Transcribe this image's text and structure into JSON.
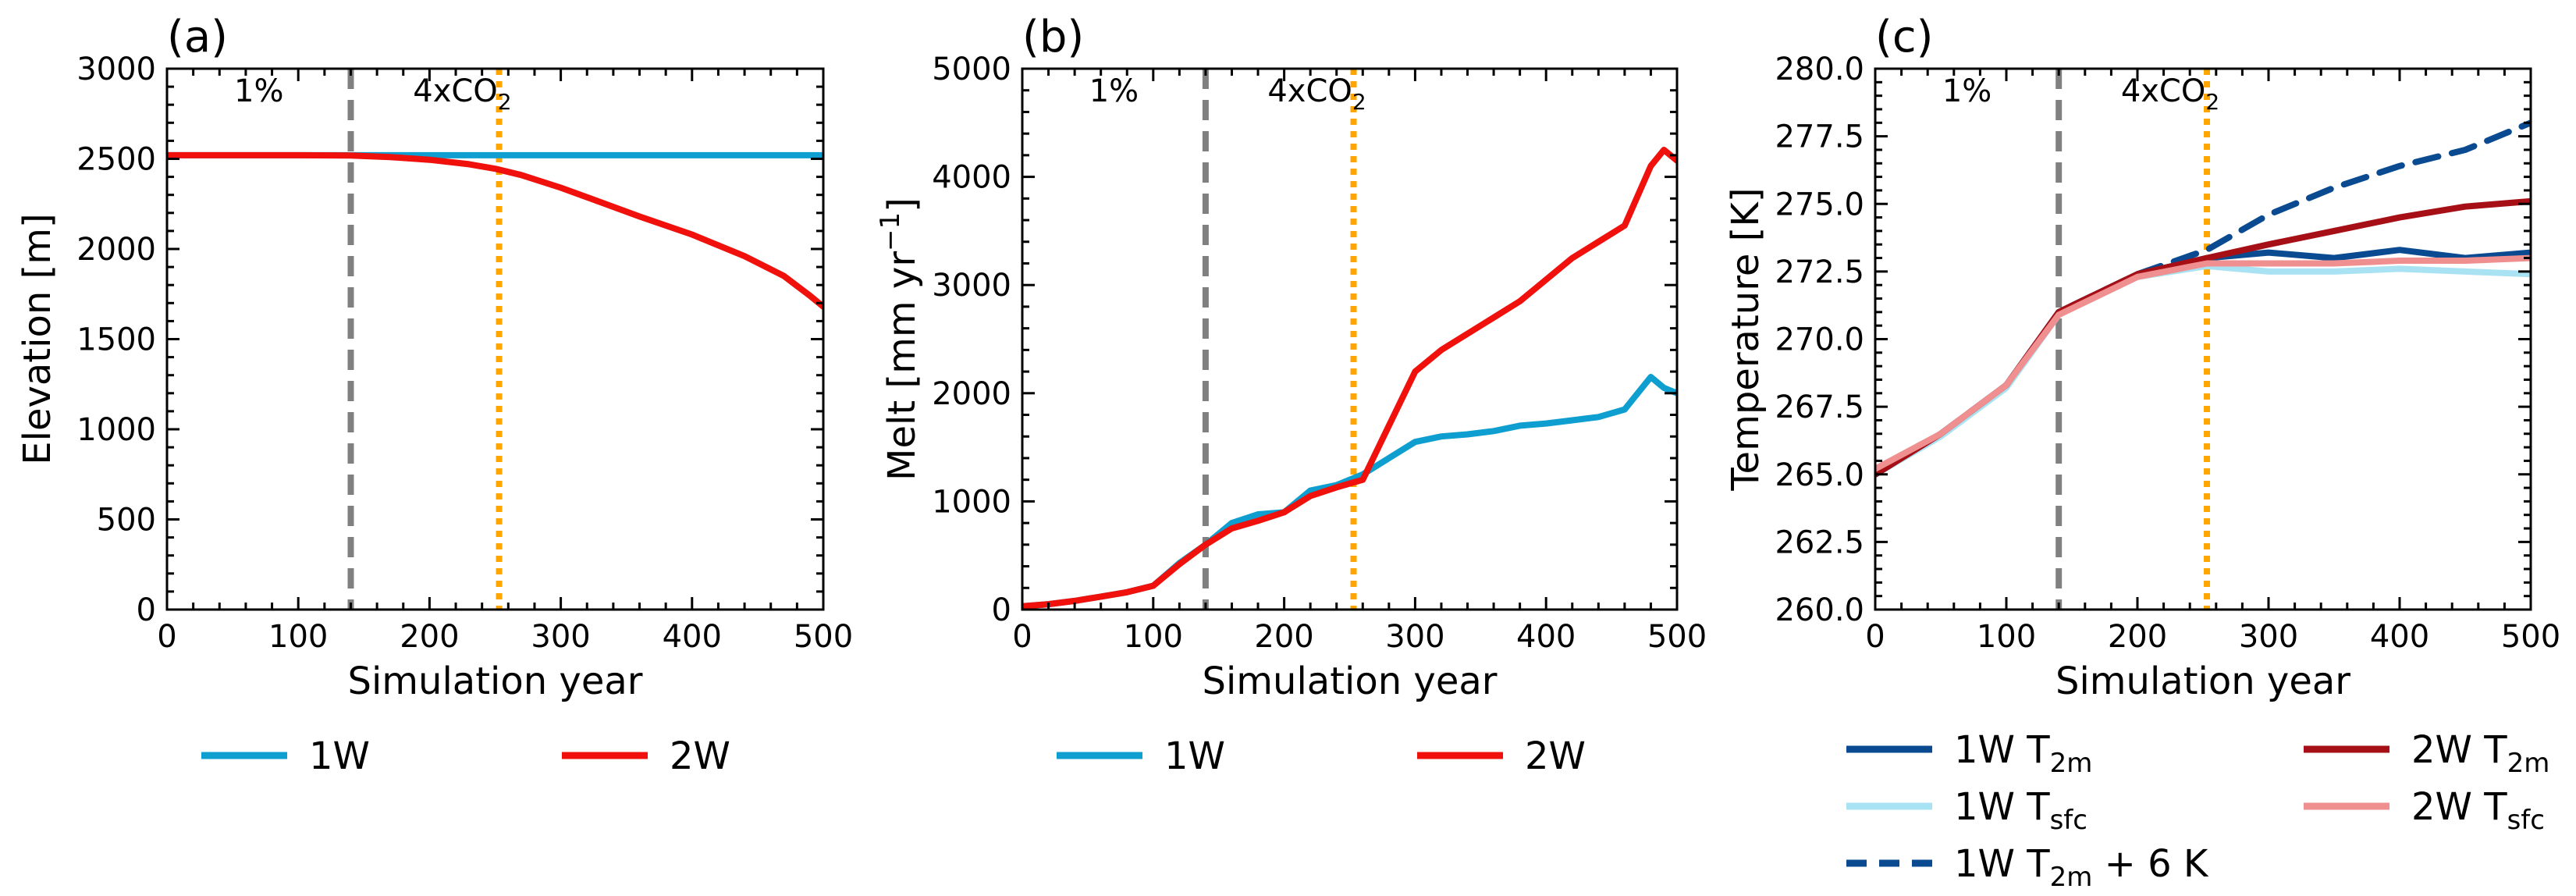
{
  "colors": {
    "w1": "#0e9fd0",
    "w2": "#f0100c",
    "t2m_1w": "#0a4a90",
    "tsfc_1w": "#a9e3f3",
    "t2m_2w": "#a50f15",
    "tsfc_2w": "#ef8f8f",
    "vline_dashed": "#808080",
    "vline_dotted": "#ffa500"
  },
  "annotations": {
    "phase1": "1%",
    "phase2_prefix": "4xCO",
    "phase2_sub": "2"
  },
  "chart_data": [
    {
      "panel": "(a)",
      "type": "line",
      "title": "",
      "xlabel": "Simulation year",
      "ylabel": "Elevation [m]",
      "xlim": [
        0,
        500
      ],
      "ylim": [
        0,
        3000
      ],
      "xticks": [
        0,
        100,
        200,
        300,
        400,
        500
      ],
      "yticks": [
        0,
        500,
        1000,
        1500,
        2000,
        2500,
        3000
      ],
      "vlines": [
        {
          "x": 140,
          "style": "dashed"
        },
        {
          "x": 253,
          "style": "dotted"
        }
      ],
      "series": [
        {
          "name": "1W",
          "color_key": "w1",
          "x": [
            0,
            100,
            200,
            300,
            400,
            500
          ],
          "y": [
            2520,
            2520,
            2520,
            2520,
            2520,
            2520
          ]
        },
        {
          "name": "2W",
          "color_key": "w2",
          "x": [
            0,
            100,
            140,
            170,
            200,
            230,
            250,
            270,
            300,
            330,
            360,
            400,
            440,
            470,
            490,
            500
          ],
          "y": [
            2520,
            2520,
            2518,
            2510,
            2495,
            2470,
            2445,
            2410,
            2340,
            2260,
            2180,
            2080,
            1960,
            1850,
            1740,
            1680
          ]
        }
      ],
      "legend": {
        "position": "bottom",
        "entries": [
          {
            "label": "1W",
            "color_key": "w1"
          },
          {
            "label": "2W",
            "color_key": "w2"
          }
        ]
      }
    },
    {
      "panel": "(b)",
      "type": "line",
      "title": "",
      "xlabel": "Simulation year",
      "ylabel": "Melt [mm yr",
      "ylabel_sup": "−1",
      "ylabel_end": "]",
      "xlim": [
        0,
        500
      ],
      "ylim": [
        0,
        5000
      ],
      "xticks": [
        0,
        100,
        200,
        300,
        400,
        500
      ],
      "yticks": [
        0,
        1000,
        2000,
        3000,
        4000,
        5000
      ],
      "vlines": [
        {
          "x": 140,
          "style": "dashed"
        },
        {
          "x": 253,
          "style": "dotted"
        }
      ],
      "series": [
        {
          "name": "1W",
          "color_key": "w1",
          "x": [
            0,
            20,
            40,
            60,
            80,
            100,
            120,
            140,
            160,
            180,
            200,
            220,
            240,
            260,
            280,
            300,
            320,
            340,
            360,
            380,
            400,
            420,
            440,
            460,
            480,
            490,
            500
          ],
          "y": [
            30,
            50,
            80,
            120,
            160,
            220,
            430,
            600,
            800,
            880,
            900,
            1100,
            1150,
            1250,
            1400,
            1550,
            1600,
            1620,
            1650,
            1700,
            1720,
            1750,
            1780,
            1850,
            2150,
            2050,
            2000
          ]
        },
        {
          "name": "2W",
          "color_key": "w2",
          "x": [
            0,
            20,
            40,
            60,
            80,
            100,
            120,
            140,
            160,
            180,
            200,
            220,
            240,
            260,
            280,
            300,
            320,
            340,
            360,
            380,
            400,
            420,
            440,
            460,
            480,
            490,
            500
          ],
          "y": [
            30,
            50,
            80,
            120,
            160,
            220,
            420,
            600,
            750,
            820,
            900,
            1050,
            1130,
            1200,
            1700,
            2200,
            2400,
            2550,
            2700,
            2850,
            3050,
            3250,
            3400,
            3550,
            4100,
            4250,
            4150
          ]
        }
      ],
      "legend": {
        "position": "bottom",
        "entries": [
          {
            "label": "1W",
            "color_key": "w1"
          },
          {
            "label": "2W",
            "color_key": "w2"
          }
        ]
      }
    },
    {
      "panel": "(c)",
      "type": "line",
      "title": "",
      "xlabel": "Simulation year",
      "ylabel": "Temperature [K]",
      "xlim": [
        0,
        500
      ],
      "ylim": [
        260,
        280
      ],
      "xticks": [
        0,
        100,
        200,
        300,
        400,
        500
      ],
      "yticks": [
        260.0,
        262.5,
        265.0,
        267.5,
        270.0,
        272.5,
        275.0,
        277.5,
        280.0
      ],
      "vlines": [
        {
          "x": 140,
          "style": "dashed"
        },
        {
          "x": 253,
          "style": "dotted"
        }
      ],
      "series": [
        {
          "name": "1W T2m",
          "name_main": "1W T",
          "name_sub": "2m",
          "color_key": "t2m_1w",
          "style": "solid",
          "x": [
            0,
            50,
            100,
            140,
            200,
            253,
            300,
            350,
            400,
            450,
            500
          ],
          "y": [
            265.0,
            266.5,
            268.3,
            271.0,
            272.4,
            273.0,
            273.2,
            273.0,
            273.3,
            273.0,
            273.2
          ]
        },
        {
          "name": "1W Tsfc",
          "name_main": "1W T",
          "name_sub": "sfc",
          "color_key": "tsfc_1w",
          "style": "solid",
          "x": [
            0,
            50,
            100,
            140,
            200,
            253,
            300,
            350,
            400,
            450,
            500
          ],
          "y": [
            265.0,
            266.4,
            268.2,
            270.9,
            272.3,
            272.7,
            272.5,
            272.5,
            272.6,
            272.5,
            272.4
          ]
        },
        {
          "name": "1W T2m + 6 K",
          "name_main": "1W T",
          "name_sub": "2m",
          "name_end": " + 6 K",
          "color_key": "t2m_1w",
          "style": "dashed",
          "x": [
            0,
            50,
            100,
            140,
            200,
            253,
            300,
            350,
            400,
            450,
            500
          ],
          "y": [
            265.0,
            266.5,
            268.3,
            271.0,
            272.4,
            273.3,
            274.6,
            275.6,
            276.4,
            277.0,
            278.0
          ]
        },
        {
          "name": "2W T2m",
          "name_main": "2W T",
          "name_sub": "2m",
          "color_key": "t2m_2w",
          "style": "solid",
          "x": [
            0,
            50,
            100,
            140,
            200,
            253,
            300,
            350,
            400,
            450,
            500
          ],
          "y": [
            265.0,
            266.5,
            268.3,
            271.0,
            272.4,
            273.0,
            273.5,
            274.0,
            274.5,
            274.9,
            275.1
          ]
        },
        {
          "name": "2W Tsfc",
          "name_main": "2W T",
          "name_sub": "sfc",
          "color_key": "tsfc_2w",
          "style": "solid",
          "x": [
            0,
            50,
            100,
            140,
            200,
            253,
            300,
            350,
            400,
            450,
            500
          ],
          "y": [
            265.2,
            266.5,
            268.3,
            270.9,
            272.3,
            272.8,
            272.8,
            272.8,
            272.9,
            272.9,
            273.0
          ]
        }
      ],
      "legend": {
        "position": "bottom",
        "columns": 2
      }
    }
  ]
}
